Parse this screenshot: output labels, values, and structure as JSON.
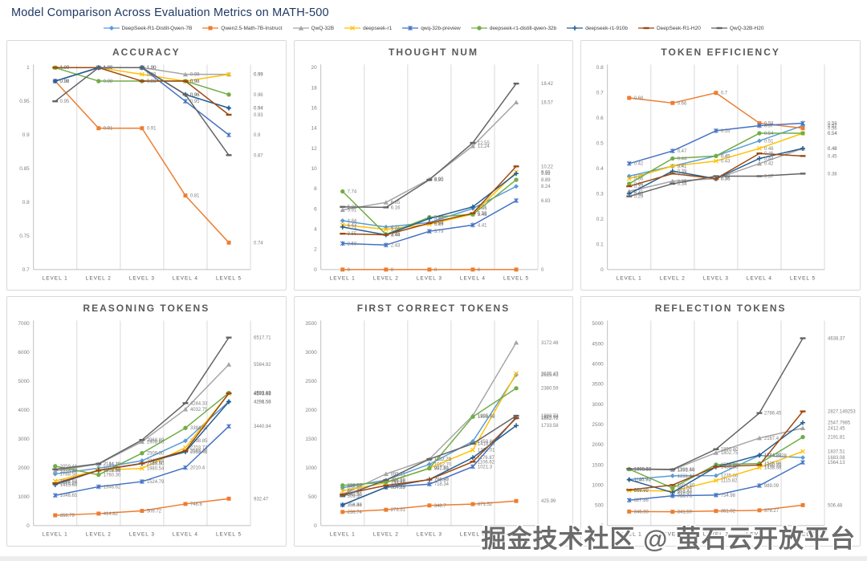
{
  "page": {
    "title": "Model Comparison Across Evaluation Metrics on MATH-500",
    "watermark": "掘金技术社区 @ 萤石云开放平台"
  },
  "legend": [
    {
      "label": "DeepSeek-R1-Distill-Qwen-7B",
      "color": "#5B9BD5",
      "marker": "diamond"
    },
    {
      "label": "Qwen2.5-Math-7B-Instruct",
      "color": "#ED7D31",
      "marker": "square"
    },
    {
      "label": "QwQ-32B",
      "color": "#A5A5A5",
      "marker": "triangle"
    },
    {
      "label": "deepseek-r1",
      "color": "#FFC000",
      "marker": "x"
    },
    {
      "label": "qwq-32b-preview",
      "color": "#4472C4",
      "marker": "asterisk"
    },
    {
      "label": "deepseek-r1-distill-qwen-32b",
      "color": "#70AD47",
      "marker": "circle"
    },
    {
      "label": "deepseek-r1-910b",
      "color": "#255E91",
      "marker": "plus"
    },
    {
      "label": "DeepSeek-R1-H20",
      "color": "#9E480E",
      "marker": "dash"
    },
    {
      "label": "QwQ-32B-H20",
      "color": "#636363",
      "marker": "dash"
    }
  ],
  "chart_data": [
    {
      "id": "accuracy",
      "type": "line",
      "title": "ACCURACY",
      "categories": [
        "LEVEL 1",
        "LEVEL 2",
        "LEVEL 3",
        "LEVEL 4",
        "LEVEL 5"
      ],
      "yticks": [
        "0.7",
        "0.75",
        "0.8",
        "0.85",
        "0.9",
        "0.95",
        "1"
      ],
      "series": [
        {
          "name": "DeepSeek-R1-Distill-Qwen-7B",
          "values": [
            "0.98",
            "1.00",
            "1.00",
            "0.96",
            "0.94"
          ]
        },
        {
          "name": "Qwen2.5-Math-7B-Instruct",
          "values": [
            "0.98",
            "0.91",
            "0.91",
            "0.81",
            "0.74"
          ]
        },
        {
          "name": "QwQ-32B",
          "values": [
            "0.98",
            "1.00",
            "1.00",
            "0.99",
            "0.99"
          ]
        },
        {
          "name": "deepseek-r1",
          "values": [
            "1.00",
            "1.00",
            "0.99",
            "0.98",
            "0.99"
          ]
        },
        {
          "name": "qwq-32b-preview",
          "values": [
            "0.98",
            "1.00",
            "1.00",
            "0.95",
            "0.9"
          ]
        },
        {
          "name": "deepseek-r1-distill-qwen-32b",
          "values": [
            "1.00",
            "0.98",
            "0.98",
            "0.98",
            "0.96"
          ]
        },
        {
          "name": "deepseek-r1-910b",
          "values": [
            "0.98",
            "1.00",
            "1.00",
            "0.96",
            "0.94"
          ]
        },
        {
          "name": "DeepSeek-R1-H20",
          "values": [
            "1.00",
            "1.00",
            "0.98",
            "0.98",
            "0.93"
          ]
        },
        {
          "name": "QwQ-32B-H20",
          "values": [
            "0.95",
            "1.00",
            "1.00",
            "0.96",
            "0.87"
          ]
        }
      ]
    },
    {
      "id": "thought-num",
      "type": "line",
      "title": "THOUGHT NUM",
      "categories": [
        "LEVEL 1",
        "LEVEL 2",
        "LEVEL 3",
        "LEVEL 4",
        "LEVEL 5"
      ],
      "yticks": [
        "0",
        "2",
        "4",
        "6",
        "8",
        "10",
        "12",
        "14",
        "16",
        "18",
        "20"
      ],
      "series": [
        {
          "name": "DeepSeek-R1-Distill-Qwen-7B",
          "values": [
            "4.84",
            "4.21",
            "4.66",
            "6.05",
            "8.24"
          ]
        },
        {
          "name": "Qwen2.5-Math-7B-Instruct",
          "values": [
            "0",
            "0",
            "0",
            "0",
            "0"
          ]
        },
        {
          "name": "QwQ-32B",
          "values": [
            "5.91",
            "6.65",
            "8.95",
            "12.24",
            "16.57"
          ]
        },
        {
          "name": "deepseek-r1",
          "values": [
            "4.43",
            "3.98",
            "4.49",
            "5.49",
            "9.66"
          ]
        },
        {
          "name": "qwq-32b-preview",
          "values": [
            "2.58",
            "2.43",
            "3.79",
            "4.41",
            "6.83"
          ]
        },
        {
          "name": "deepseek-r1-distill-qwen-32b",
          "values": [
            "7.74",
            "3.48",
            "5.18",
            "5.46",
            "8.89"
          ]
        },
        {
          "name": "deepseek-r1-910b",
          "values": [
            "4.21",
            "3.44",
            "5.05",
            "6.21",
            "9.51"
          ]
        },
        {
          "name": "DeepSeek-R1-H20",
          "values": [
            "3.55",
            "3.44",
            "4.59",
            "5.58",
            "10.22"
          ]
        },
        {
          "name": "QwQ-32B-H20",
          "values": [
            "6.21",
            "6.16",
            "8.90",
            "12.55",
            "18.42"
          ]
        }
      ]
    },
    {
      "id": "token-efficiency",
      "type": "line",
      "title": "TOKEN EFFICIENCY",
      "categories": [
        "LEVEL 1",
        "LEVEL 2",
        "LEVEL 3",
        "LEVEL 4",
        "LEVEL 5"
      ],
      "yticks": [
        "0",
        "0.1",
        "0.2",
        "0.3",
        "0.4",
        "0.5",
        "0.6",
        "0.7",
        "0.8"
      ],
      "series": [
        {
          "name": "DeepSeek-R1-Distill-Qwen-7B",
          "values": [
            "0.37",
            "0.41",
            "0.45",
            "0.51",
            "0.57"
          ]
        },
        {
          "name": "Qwen2.5-Math-7B-Instruct",
          "values": [
            "0.68",
            "0.66",
            "0.7",
            "0.58",
            "0.56"
          ]
        },
        {
          "name": "QwQ-32B",
          "values": [
            "0.31",
            "0.35",
            "0.36",
            "0.42",
            "0.48"
          ]
        },
        {
          "name": "deepseek-r1",
          "values": [
            "0.36",
            "0.41",
            "0.43",
            "0.48",
            "0.54"
          ]
        },
        {
          "name": "qwq-32b-preview",
          "values": [
            "0.42",
            "0.47",
            "0.55",
            "0.57",
            "0.58"
          ]
        },
        {
          "name": "deepseek-r1-distill-qwen-32b",
          "values": [
            "0.34",
            "0.44",
            "0.45",
            "0.54",
            "0.54"
          ]
        },
        {
          "name": "deepseek-r1-910b",
          "values": [
            "0.30",
            "0.39",
            "0.36",
            "0.44",
            "0.48"
          ]
        },
        {
          "name": "DeepSeek-R1-H20",
          "values": [
            "0.33",
            "0.38",
            "0.36",
            "0.46",
            "0.45"
          ]
        },
        {
          "name": "QwQ-32B-H20",
          "values": [
            "0.29",
            "0.34",
            "0.37",
            "0.37",
            "0.38"
          ]
        }
      ]
    },
    {
      "id": "reasoning-tokens",
      "type": "line",
      "title": "REASONING TOKENS",
      "categories": [
        "LEVEL 1",
        "LEVEL 2",
        "LEVEL 3",
        "LEVEL 4",
        "LEVEL 5"
      ],
      "yticks": [
        "0",
        "1000",
        "2000",
        "3000",
        "4000",
        "5000",
        "6000",
        "7000"
      ],
      "series": [
        {
          "name": "DeepSeek-R1-Distill-Qwen-7B",
          "values": [
            "1788.58",
            "1987.75",
            "2249.48",
            "2938.85",
            "4298.58"
          ]
        },
        {
          "name": "Qwen2.5-Math-7B-Instruct",
          "values": [
            "356.79",
            "414.82",
            "509.72",
            "748.8",
            "932.47"
          ]
        },
        {
          "name": "QwQ-32B",
          "values": [
            "1898.40",
            "2134.18",
            "2908.60",
            "4032.75",
            "5584.92"
          ]
        },
        {
          "name": "deepseek-r1",
          "values": [
            "1544.88",
            "1919.87",
            "1980.54",
            "2703.73",
            "4573.63"
          ]
        },
        {
          "name": "qwq-32b-preview",
          "values": [
            "1046.65",
            "1346.62",
            "1524.79",
            "2010.4",
            "3440.94"
          ]
        },
        {
          "name": "deepseek-r1-distill-qwen-32b",
          "values": [
            "2059.41",
            "1760.30",
            "2509.30",
            "3384.65",
            "4599.69"
          ]
        },
        {
          "name": "deepseek-r1-910b",
          "values": [
            "1415.68",
            "1916.96",
            "2149.50",
            "2553.41",
            "4291.58"
          ]
        },
        {
          "name": "DeepSeek-R1-H20",
          "values": [
            "1466.20",
            "1912.60",
            "2155.80",
            "2593.40",
            "4583.48"
          ]
        },
        {
          "name": "QwQ-32B-H20",
          "values": [
            "1951.30",
            "2144.20",
            "2968.89",
            "4244.33",
            "6517.71"
          ]
        }
      ]
    },
    {
      "id": "first-correct-tokens",
      "type": "line",
      "title": "FIRST CORRECT TOKENS",
      "categories": [
        "LEVEL 1",
        "LEVEL 2",
        "LEVEL 3",
        "LEVEL 4",
        "LEVEL 5"
      ],
      "yticks": [
        "0",
        "500",
        "1000",
        "1500",
        "2000",
        "2500",
        "3000",
        "3500"
      ],
      "series": [
        {
          "name": "DeepSeek-R1-Distill-Qwen-7B",
          "values": [
            "656.60",
            "788.68",
            "1062.70",
            "1459.80",
            "2615.43"
          ]
        },
        {
          "name": "Qwen2.5-Math-7B-Instruct",
          "values": [
            "236.74",
            "273.91",
            "348.7",
            "371.52",
            "425.99"
          ]
        },
        {
          "name": "QwQ-32B",
          "values": [
            "540.30",
            "895.21",
            "1152.71",
            "1905.40",
            "3172.48"
          ]
        },
        {
          "name": "deepseek-r1",
          "values": [
            "601.20",
            "739.58",
            "997.81",
            "1310.01",
            "2635.47"
          ]
        },
        {
          "name": "qwq-32b-preview",
          "values": [
            "356.58",
            "664.89",
            "718.34",
            "1021.3",
            "1879.98"
          ]
        },
        {
          "name": "deepseek-r1-distill-qwen-32b",
          "values": [
            "696.89",
            "751.40",
            "991.80",
            "1886.56",
            "2380.59"
          ]
        },
        {
          "name": "deepseek-r1-910b",
          "values": [
            "358.49",
            "664.85",
            "798.87",
            "1176.87",
            "1733.58"
          ]
        },
        {
          "name": "DeepSeek-R1-H20",
          "values": [
            "540.50",
            "694.90",
            "796.90",
            "1106.62",
            "1862.72"
          ]
        },
        {
          "name": "QwQ-32B-H20",
          "values": [
            "509.30",
            "788.70",
            "1152.70",
            "1419.80",
            "1902.72"
          ]
        }
      ]
    },
    {
      "id": "reflection-tokens",
      "type": "line",
      "title": "REFLECTION TOKENS",
      "categories": [
        "LEVEL 1",
        "LEVEL 2",
        "LEVEL 3",
        "LEVEL 4",
        "LEVEL 5"
      ],
      "yticks": [
        "0",
        "500",
        "1000",
        "1500",
        "2000",
        "2500",
        "3000",
        "3500",
        "4000",
        "4500",
        "5000"
      ],
      "series": [
        {
          "name": "DeepSeek-R1-Distill-Qwen-7B",
          "values": [
            "1140.71",
            "1231.44",
            "1235.66",
            "1734.8828",
            "1683.08"
          ]
        },
        {
          "name": "Qwen2.5-Math-7B-Instruct",
          "values": [
            "346.90",
            "341.50",
            "361.02",
            "378.27",
            "506.48"
          ]
        },
        {
          "name": "QwQ-32B",
          "values": [
            "1398.68",
            "1381.44",
            "1802.75",
            "2167.4",
            "2412.45"
          ]
        },
        {
          "name": "deepseek-r1",
          "values": [
            "869.69",
            "853.42",
            "1115.82",
            "1438.98",
            "1837.51"
          ]
        },
        {
          "name": "qwq-32b-preview",
          "values": [
            "627.86",
            "736.73",
            "754.98",
            "989.09",
            "1564.13"
          ]
        },
        {
          "name": "deepseek-r1-distill-qwen-32b",
          "values": [
            "1396.13",
            "931.04",
            "1509.98",
            "1535.86",
            "2191.81"
          ]
        },
        {
          "name": "deepseek-r1-910b",
          "values": [
            "1135.90",
            "818.60",
            "1452.30",
            "1744.20",
            "2547.7985"
          ]
        },
        {
          "name": "DeepSeek-R1-H20",
          "values": [
            "883.70",
            "1004.40",
            "1455.60",
            "1498.70",
            "2827.149253"
          ]
        },
        {
          "name": "QwQ-32B-H20",
          "values": [
            "1402.50",
            "1390.60",
            "1890.40",
            "2786.45",
            "4638.37"
          ]
        }
      ]
    }
  ]
}
